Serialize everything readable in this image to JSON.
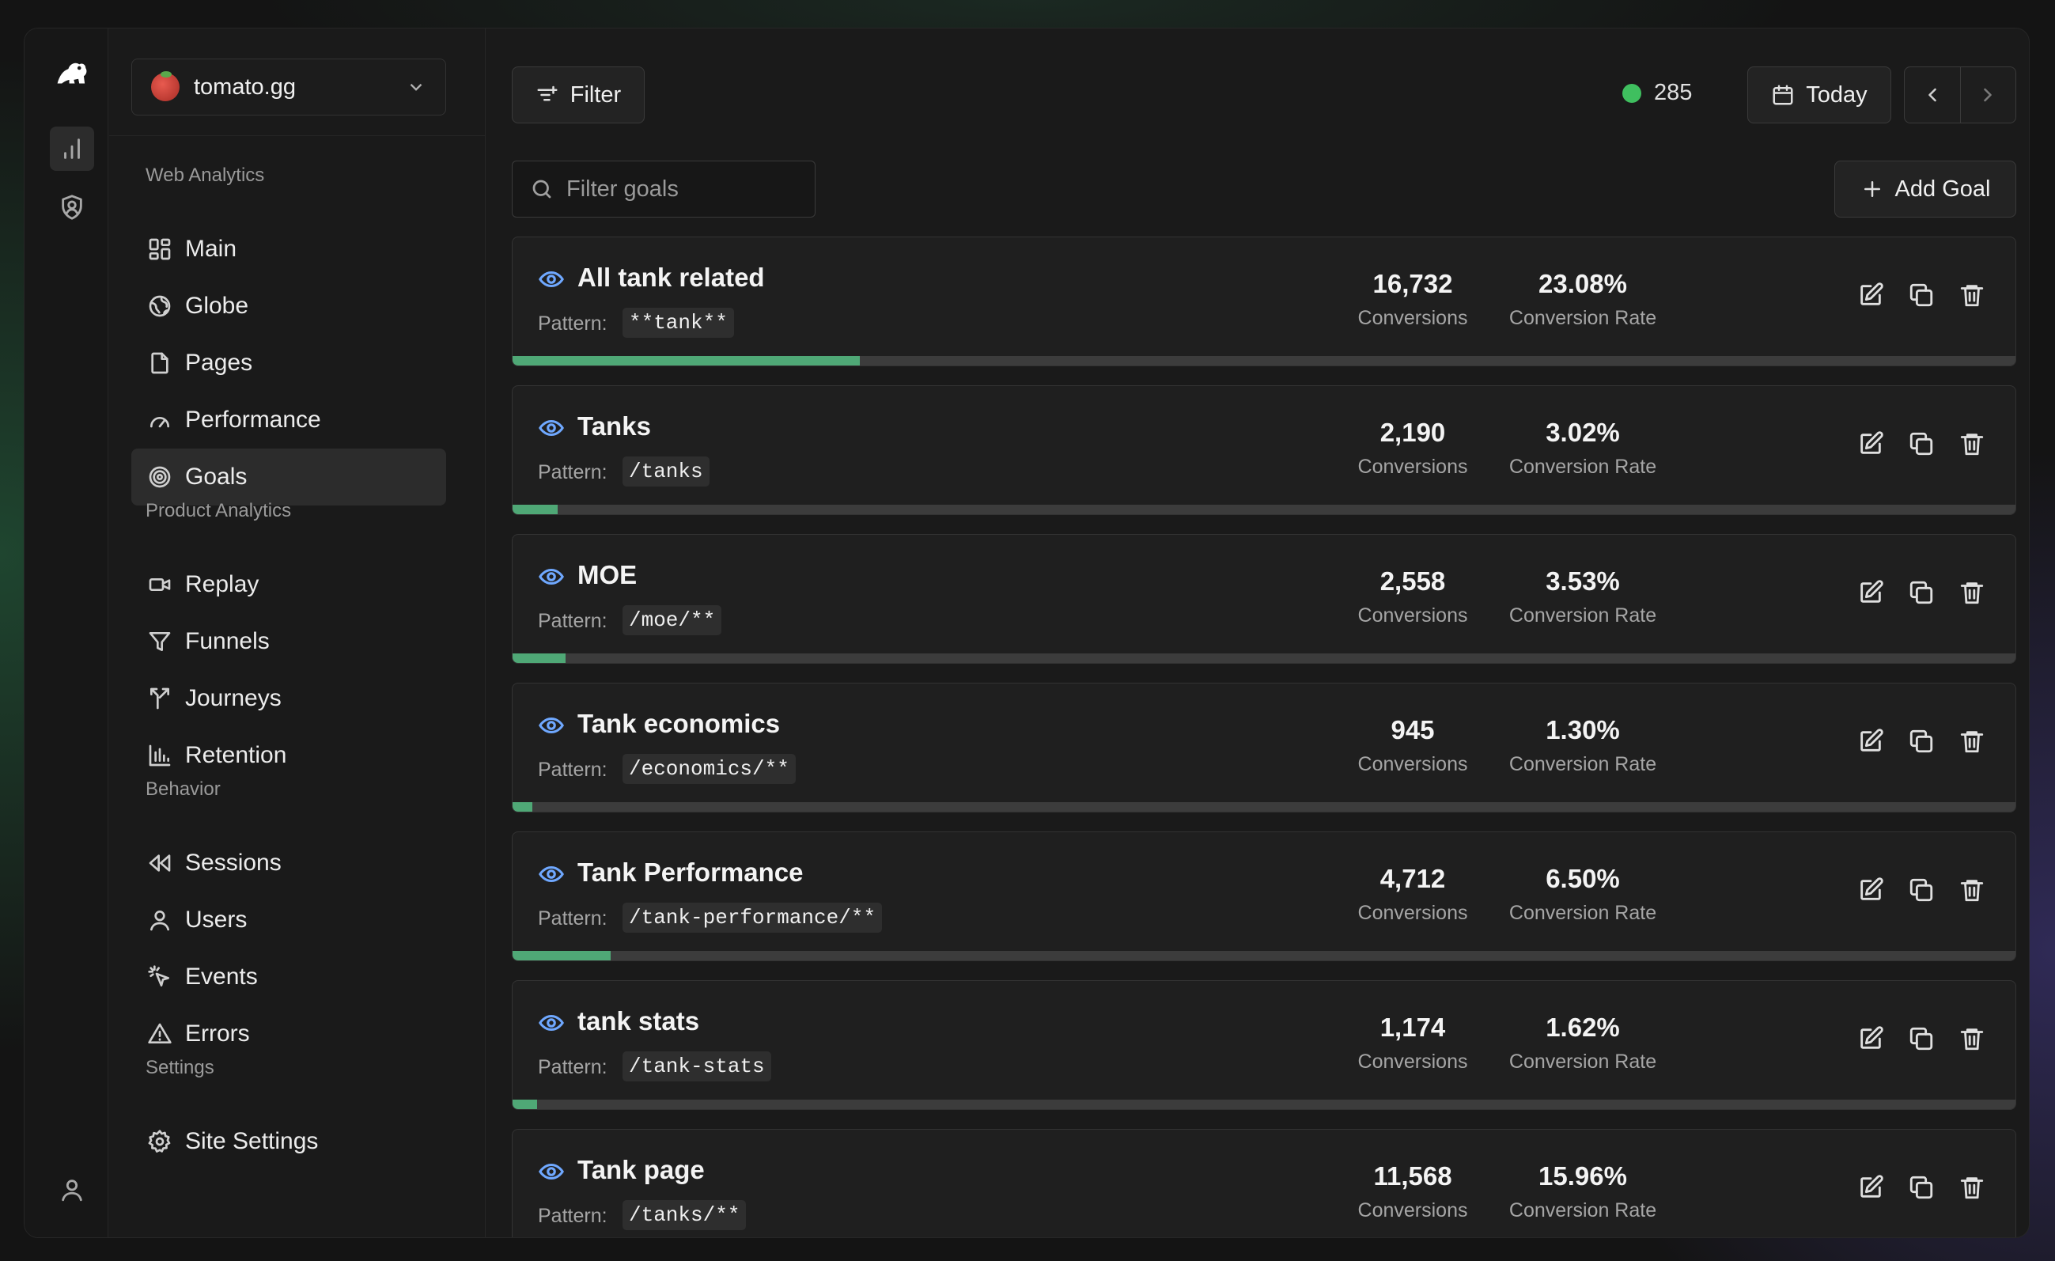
{
  "site": {
    "name": "tomato.gg"
  },
  "sections": {
    "web": "Web Analytics",
    "product": "Product Analytics",
    "behavior": "Behavior",
    "settings": "Settings"
  },
  "nav": {
    "main": "Main",
    "globe": "Globe",
    "pages": "Pages",
    "performance": "Performance",
    "goals": "Goals",
    "replay": "Replay",
    "funnels": "Funnels",
    "journeys": "Journeys",
    "retention": "Retention",
    "sessions": "Sessions",
    "users": "Users",
    "events": "Events",
    "errors": "Errors",
    "site_settings": "Site Settings"
  },
  "toolbar": {
    "filter_label": "Filter",
    "live_count": "285",
    "date_label": "Today",
    "search_placeholder": "Filter goals",
    "add_goal_label": "Add Goal"
  },
  "goal_labels": {
    "pattern": "Pattern:",
    "conversions": "Conversions",
    "rate": "Conversion Rate"
  },
  "goals": [
    {
      "name": "All tank related",
      "pattern": "**tank**",
      "conversions": "16,732",
      "rate": "23.08%",
      "fraction": 0.2308
    },
    {
      "name": "Tanks",
      "pattern": "/tanks",
      "conversions": "2,190",
      "rate": "3.02%",
      "fraction": 0.0302
    },
    {
      "name": "MOE",
      "pattern": "/moe/**",
      "conversions": "2,558",
      "rate": "3.53%",
      "fraction": 0.0353
    },
    {
      "name": "Tank economics",
      "pattern": "/economics/**",
      "conversions": "945",
      "rate": "1.30%",
      "fraction": 0.013
    },
    {
      "name": "Tank Performance",
      "pattern": "/tank-performance/**",
      "conversions": "4,712",
      "rate": "6.50%",
      "fraction": 0.065
    },
    {
      "name": "tank stats",
      "pattern": "/tank-stats",
      "conversions": "1,174",
      "rate": "1.62%",
      "fraction": 0.0162
    },
    {
      "name": "Tank page",
      "pattern": "/tanks/**",
      "conversions": "11,568",
      "rate": "15.96%",
      "fraction": 0.1596
    }
  ],
  "colors": {
    "accent": "#4fa876",
    "live": "#3fbf5f",
    "eye": "#6fa8ff"
  }
}
